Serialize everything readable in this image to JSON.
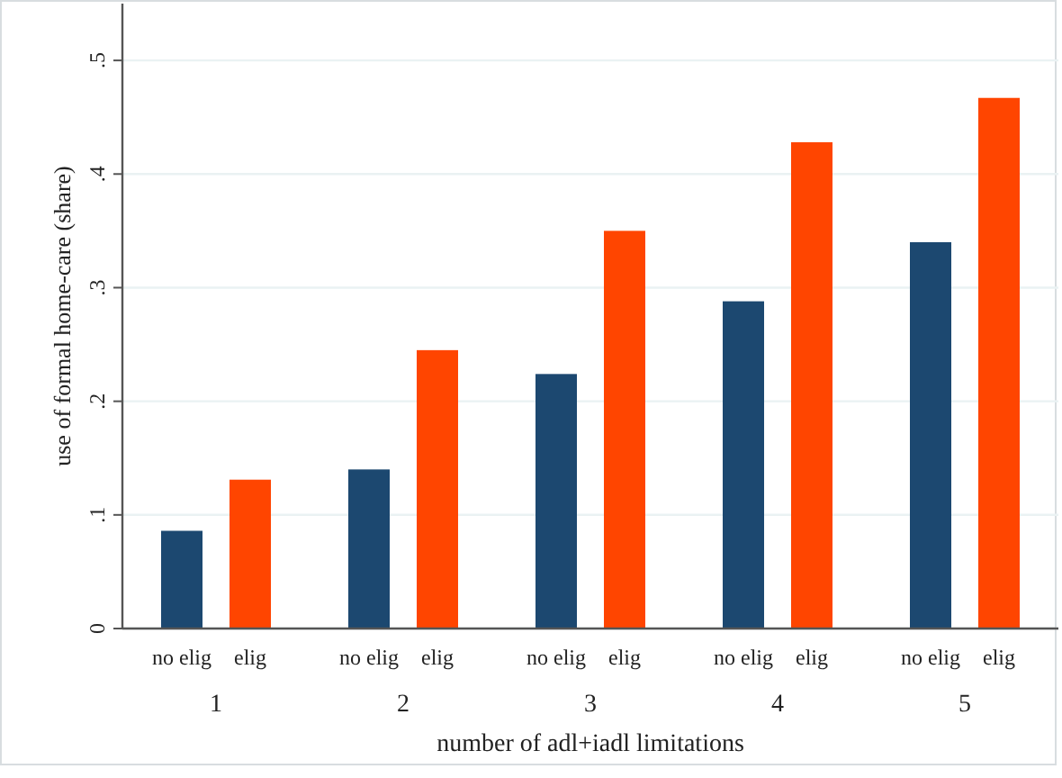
{
  "chart_data": {
    "type": "bar",
    "xlabel": "number of adl+iadl limitations",
    "ylabel": "use of formal home-care (share)",
    "categories": [
      "1",
      "2",
      "3",
      "4",
      "5"
    ],
    "series": [
      {
        "name": "no elig",
        "color": "#1c4870",
        "values": [
          0.086,
          0.14,
          0.224,
          0.288,
          0.34
        ]
      },
      {
        "name": "elig",
        "color": "#ff4500",
        "values": [
          0.131,
          0.245,
          0.35,
          0.428,
          0.467
        ]
      }
    ],
    "ylim": [
      0,
      0.55
    ],
    "yticks": [
      0,
      {
        "value": 0.1,
        "label": ".1"
      },
      {
        "value": 0.2,
        "label": ".2"
      },
      {
        "value": 0.3,
        "label": ".3"
      },
      {
        "value": 0.4,
        "label": ".4"
      },
      {
        "value": 0.5,
        "label": ".5"
      }
    ],
    "grid": "y"
  }
}
